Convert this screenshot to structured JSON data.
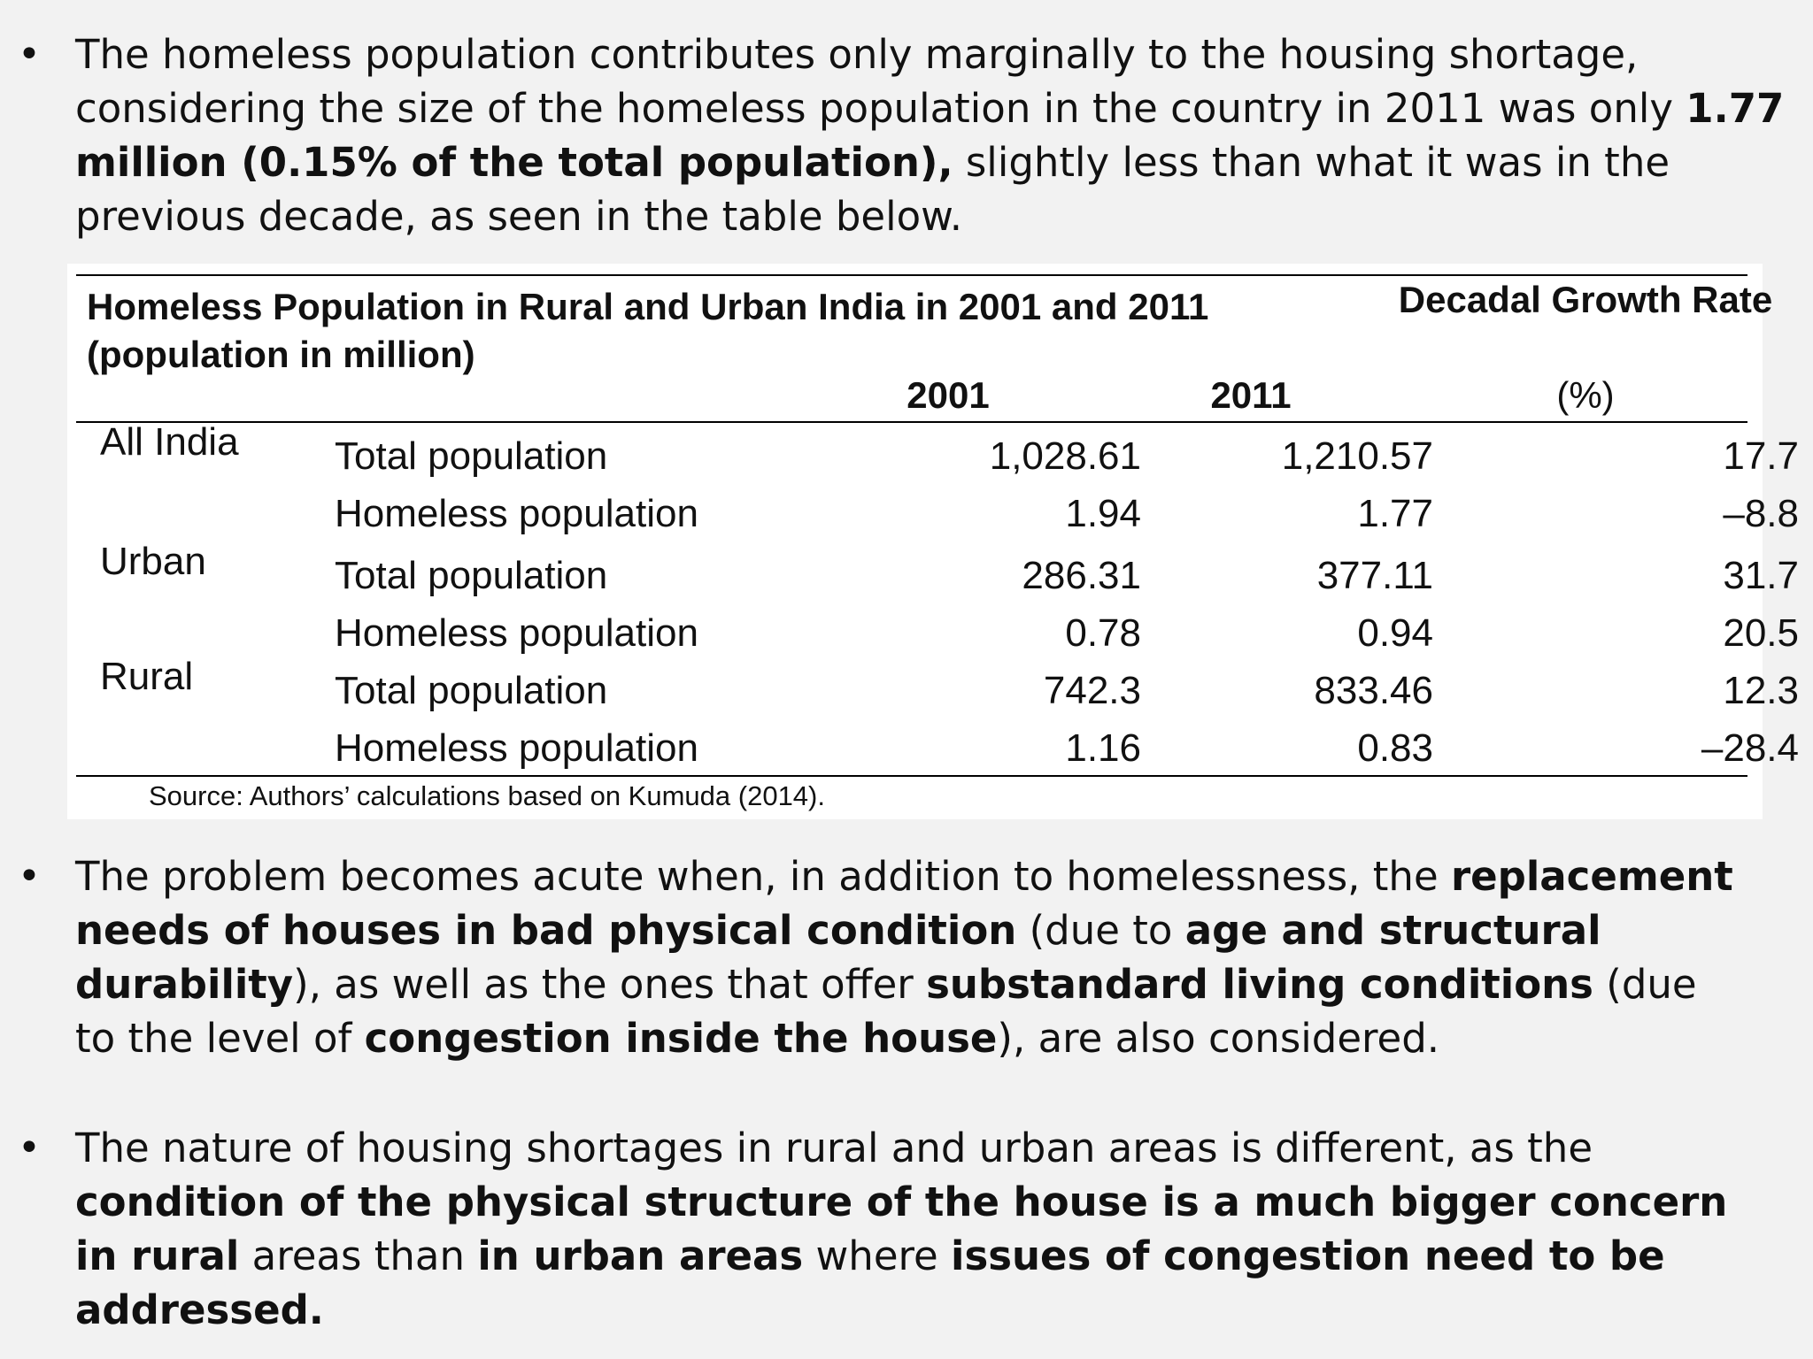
{
  "bullets": {
    "b1": {
      "t1": "The homeless population contributes only marginally to the housing shortage, considering the size of the homeless population in the country in 2011 was only ",
      "b1": "1.77 million (0.15% of the total population),",
      "t2": " slightly less than what it was in the previous decade, as seen in the table below."
    },
    "b2": {
      "t1": "The problem becomes acute when, in addition to homelessness, the ",
      "b1": "replacement needs of houses in bad physical condition",
      "t2": " (due to ",
      "b2": "age and structural durability",
      "t3": "), as well as the ones that offer ",
      "b3": "substandard living conditions",
      "t4": " (due to the level of ",
      "b4": "congestion inside the house",
      "t5": "), are also considered."
    },
    "b3": {
      "t1": "The nature of housing shortages in rural and urban areas is different, as the ",
      "b1": "condition of the physical structure of the house is a much bigger concern in rural",
      "t2": " areas than ",
      "b2": "in urban areas",
      "t3": " where ",
      "b3": "issues of congestion need to be addressed."
    }
  },
  "table": {
    "title": "Homeless Population in Rural and Urban India in 2001 and 2011 (population in million)",
    "col_2001": "2001",
    "col_2011": "2011",
    "col_growth": "Decadal Growth Rate",
    "col_growth_unit": "(%)",
    "rows": [
      {
        "group": "All India",
        "label": "Total population",
        "v2001": "1,028.61",
        "v2011": "1,210.57",
        "growth": "17.7"
      },
      {
        "group": "",
        "label": "Homeless population",
        "v2001": "1.94",
        "v2011": "1.77",
        "growth": "–8.8"
      },
      {
        "group": "Urban",
        "label": "Total population",
        "v2001": "286.31",
        "v2011": "377.11",
        "growth": "31.7"
      },
      {
        "group": "",
        "label": "Homeless population",
        "v2001": "0.78",
        "v2011": "0.94",
        "growth": "20.5"
      },
      {
        "group": "Rural",
        "label": "Total population",
        "v2001": "742.3",
        "v2011": "833.46",
        "growth": "12.3"
      },
      {
        "group": "",
        "label": "Homeless population",
        "v2001": "1.16",
        "v2011": "0.83",
        "growth": "–28.4"
      }
    ],
    "source": "Source: Authors’ calculations based on Kumuda (2014)."
  }
}
